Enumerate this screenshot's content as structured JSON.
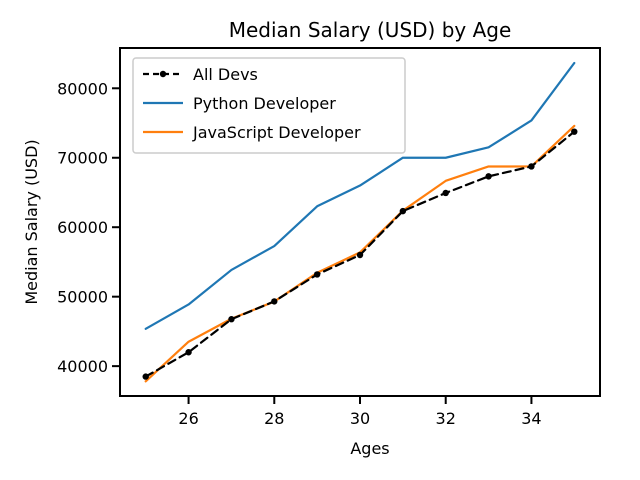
{
  "chart_data": {
    "type": "line",
    "title": "Median Salary (USD) by Age",
    "xlabel": "Ages",
    "ylabel": "Median Salary (USD)",
    "x": [
      25,
      26,
      27,
      28,
      29,
      30,
      31,
      32,
      33,
      34,
      35
    ],
    "xlim": [
      24.4,
      35.6
    ],
    "ylim": [
      35700,
      85800
    ],
    "x_ticks": [
      26,
      28,
      30,
      32,
      34
    ],
    "y_ticks": [
      40000,
      50000,
      60000,
      70000,
      80000
    ],
    "x_tick_labels": [
      "26",
      "28",
      "30",
      "32",
      "34"
    ],
    "y_tick_labels": [
      "40000",
      "50000",
      "60000",
      "70000",
      "80000"
    ],
    "grid": false,
    "legend_position": "top-left",
    "series": [
      {
        "name": "All Devs",
        "color": "#000000",
        "style": "dashed-with-dot-markers",
        "values": [
          38496,
          42000,
          46752,
          49320,
          53200,
          56000,
          62316,
          64928,
          67317,
          68748,
          73752
        ]
      },
      {
        "name": "Python Developer",
        "color": "#1f77b4",
        "style": "solid",
        "values": [
          45372,
          48876,
          53850,
          57287,
          63016,
          65998,
          70003,
          70000,
          71496,
          75370,
          83640
        ]
      },
      {
        "name": "JavaScript Developer",
        "color": "#ff7f0e",
        "style": "solid",
        "values": [
          37810,
          43515,
          46823,
          49293,
          53437,
          56373,
          62375,
          66674,
          68745,
          68746,
          74583
        ]
      }
    ]
  }
}
